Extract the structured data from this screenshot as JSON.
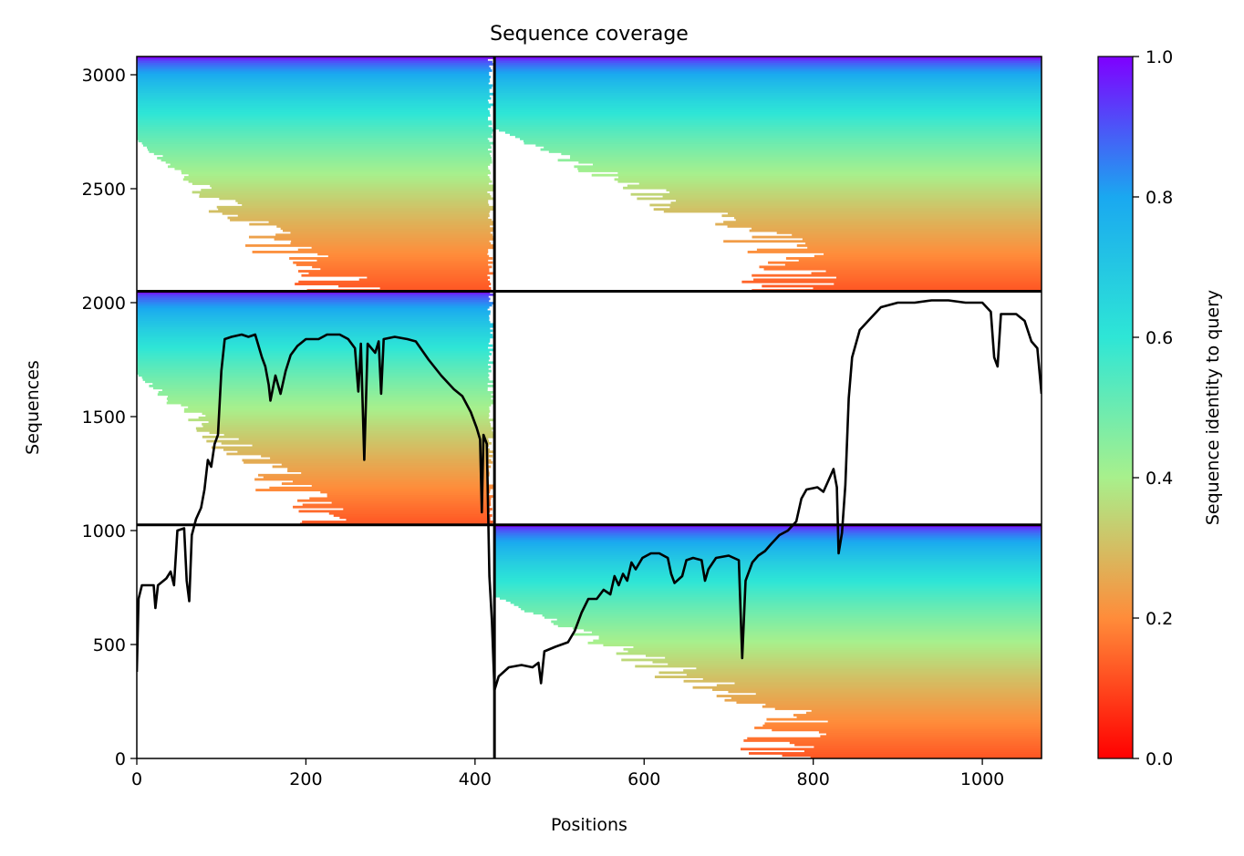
{
  "chart_data": {
    "type": "heatmap",
    "title": "Sequence coverage",
    "xlabel": "Positions",
    "ylabel": "Sequences",
    "xlim": [
      0,
      1070
    ],
    "ylim": [
      0,
      3080
    ],
    "x_ticks": [
      0,
      200,
      400,
      600,
      800,
      1000
    ],
    "y_ticks": [
      0,
      500,
      1000,
      1500,
      2000,
      2500,
      3000
    ],
    "colorbar": {
      "label": "Sequence identity to query",
      "range": [
        0,
        1
      ],
      "ticks": [
        "0.0",
        "0.2",
        "0.4",
        "0.6",
        "0.8",
        "1.0"
      ],
      "colormap": "rainbow"
    },
    "block_boundaries": {
      "x": [
        423
      ],
      "y": [
        1025,
        2050
      ]
    },
    "blocks": [
      {
        "x": [
          0,
          423
        ],
        "y": [
          2050,
          3080
        ],
        "sequences": 1030
      },
      {
        "x": [
          423,
          1070
        ],
        "y": [
          2050,
          3080
        ],
        "sequences": 1030
      },
      {
        "x": [
          0,
          423
        ],
        "y": [
          1025,
          2050
        ],
        "sequences": 1025
      },
      {
        "x": [
          423,
          1070
        ],
        "y": [
          0,
          1025
        ],
        "sequences": 1025
      }
    ],
    "coverage_line": {
      "name": "",
      "color": "#000000",
      "points": [
        [
          0,
          380
        ],
        [
          2,
          700
        ],
        [
          6,
          760
        ],
        [
          20,
          760
        ],
        [
          22,
          660
        ],
        [
          25,
          760
        ],
        [
          35,
          790
        ],
        [
          40,
          820
        ],
        [
          44,
          760
        ],
        [
          48,
          1000
        ],
        [
          56,
          1010
        ],
        [
          59,
          780
        ],
        [
          62,
          690
        ],
        [
          65,
          980
        ],
        [
          70,
          1050
        ],
        [
          76,
          1100
        ],
        [
          80,
          1180
        ],
        [
          84,
          1310
        ],
        [
          88,
          1280
        ],
        [
          92,
          1380
        ],
        [
          96,
          1420
        ],
        [
          100,
          1700
        ],
        [
          104,
          1840
        ],
        [
          112,
          1850
        ],
        [
          124,
          1860
        ],
        [
          132,
          1850
        ],
        [
          140,
          1860
        ],
        [
          148,
          1760
        ],
        [
          152,
          1720
        ],
        [
          156,
          1640
        ],
        [
          158,
          1570
        ],
        [
          164,
          1680
        ],
        [
          170,
          1600
        ],
        [
          176,
          1700
        ],
        [
          182,
          1770
        ],
        [
          190,
          1810
        ],
        [
          200,
          1840
        ],
        [
          215,
          1840
        ],
        [
          225,
          1860
        ],
        [
          240,
          1860
        ],
        [
          250,
          1840
        ],
        [
          258,
          1800
        ],
        [
          262,
          1610
        ],
        [
          265,
          1820
        ],
        [
          269,
          1310
        ],
        [
          273,
          1820
        ],
        [
          282,
          1780
        ],
        [
          286,
          1830
        ],
        [
          289,
          1600
        ],
        [
          292,
          1840
        ],
        [
          305,
          1850
        ],
        [
          320,
          1840
        ],
        [
          330,
          1830
        ],
        [
          345,
          1750
        ],
        [
          360,
          1680
        ],
        [
          375,
          1620
        ],
        [
          385,
          1590
        ],
        [
          395,
          1520
        ],
        [
          402,
          1450
        ],
        [
          406,
          1400
        ],
        [
          408,
          1080
        ],
        [
          410,
          1420
        ],
        [
          414,
          1380
        ],
        [
          417,
          800
        ],
        [
          420,
          600
        ],
        [
          423,
          300
        ],
        [
          428,
          360
        ],
        [
          440,
          400
        ],
        [
          455,
          410
        ],
        [
          468,
          400
        ],
        [
          475,
          420
        ],
        [
          478,
          330
        ],
        [
          482,
          470
        ],
        [
          495,
          490
        ],
        [
          510,
          510
        ],
        [
          518,
          560
        ],
        [
          526,
          640
        ],
        [
          534,
          700
        ],
        [
          544,
          700
        ],
        [
          552,
          740
        ],
        [
          560,
          720
        ],
        [
          565,
          800
        ],
        [
          570,
          760
        ],
        [
          575,
          810
        ],
        [
          580,
          780
        ],
        [
          585,
          860
        ],
        [
          590,
          830
        ],
        [
          598,
          880
        ],
        [
          608,
          900
        ],
        [
          618,
          900
        ],
        [
          628,
          880
        ],
        [
          632,
          810
        ],
        [
          636,
          770
        ],
        [
          645,
          800
        ],
        [
          650,
          870
        ],
        [
          658,
          880
        ],
        [
          668,
          870
        ],
        [
          672,
          780
        ],
        [
          676,
          830
        ],
        [
          685,
          880
        ],
        [
          700,
          890
        ],
        [
          712,
          870
        ],
        [
          716,
          440
        ],
        [
          720,
          780
        ],
        [
          728,
          860
        ],
        [
          735,
          890
        ],
        [
          743,
          910
        ],
        [
          750,
          940
        ],
        [
          760,
          980
        ],
        [
          770,
          1000
        ],
        [
          780,
          1040
        ],
        [
          786,
          1140
        ],
        [
          792,
          1180
        ],
        [
          805,
          1190
        ],
        [
          812,
          1170
        ],
        [
          818,
          1220
        ],
        [
          824,
          1270
        ],
        [
          828,
          1190
        ],
        [
          830,
          900
        ],
        [
          834,
          990
        ],
        [
          838,
          1200
        ],
        [
          842,
          1580
        ],
        [
          846,
          1760
        ],
        [
          855,
          1880
        ],
        [
          865,
          1920
        ],
        [
          880,
          1980
        ],
        [
          900,
          2000
        ],
        [
          920,
          2000
        ],
        [
          940,
          2010
        ],
        [
          960,
          2010
        ],
        [
          980,
          2000
        ],
        [
          1000,
          2000
        ],
        [
          1010,
          1960
        ],
        [
          1014,
          1760
        ],
        [
          1018,
          1720
        ],
        [
          1022,
          1950
        ],
        [
          1040,
          1950
        ],
        [
          1050,
          1920
        ],
        [
          1058,
          1830
        ],
        [
          1065,
          1800
        ],
        [
          1070,
          1600
        ]
      ]
    }
  }
}
